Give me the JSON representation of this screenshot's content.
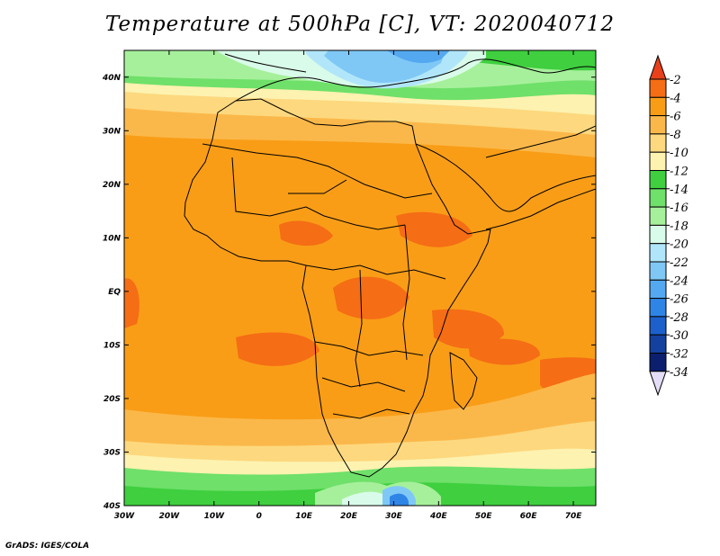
{
  "title": "Temperature at 500hPa [C], VT: 2020040712",
  "credit": "GrADS: IGES/COLA",
  "map": {
    "lon_range": [
      -30,
      75
    ],
    "lat_range": [
      -40,
      45
    ],
    "x_ticks": [
      "30W",
      "20W",
      "10W",
      "0",
      "10E",
      "20E",
      "30E",
      "40E",
      "50E",
      "60E",
      "70E"
    ],
    "y_ticks": [
      "40N",
      "30N",
      "20N",
      "10N",
      "EQ",
      "10S",
      "20S",
      "30S",
      "40S"
    ]
  },
  "colorbar": {
    "labels": [
      "-2",
      "-4",
      "-6",
      "-8",
      "-10",
      "-12",
      "-14",
      "-16",
      "-18",
      "-20",
      "-22",
      "-24",
      "-26",
      "-28",
      "-30",
      "-32",
      "-34"
    ],
    "colors": [
      "#e8401a",
      "#f56d14",
      "#f99d17",
      "#fbb84a",
      "#fdd87e",
      "#fdf2b0",
      "#3fcf3f",
      "#6fe06a",
      "#a6f09b",
      "#d9fbe9",
      "#b1e6fa",
      "#7fc8f6",
      "#54a8f0",
      "#2f85e6",
      "#1d60cb",
      "#1441a0",
      "#0b1f6e"
    ]
  }
}
